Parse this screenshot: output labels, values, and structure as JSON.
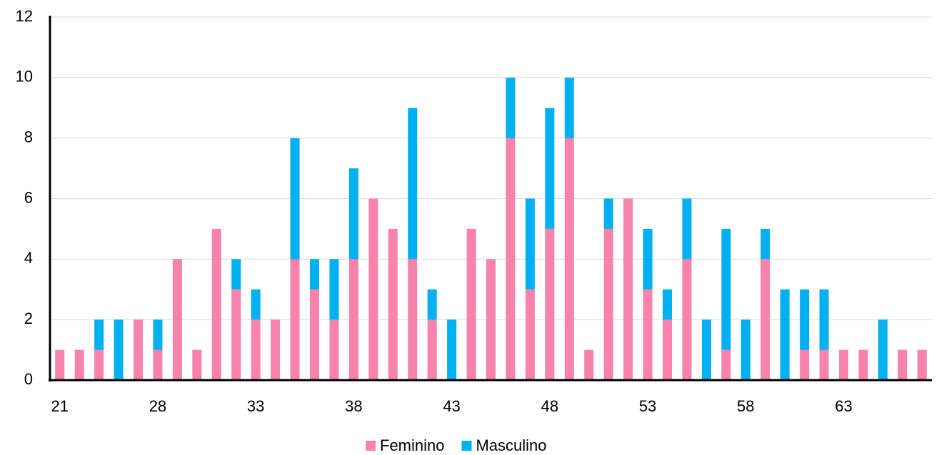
{
  "chart_data": {
    "type": "stacked_bar",
    "categories": [
      21,
      null,
      null,
      null,
      null,
      28,
      null,
      null,
      null,
      null,
      33,
      null,
      null,
      null,
      null,
      38,
      null,
      null,
      null,
      null,
      43,
      null,
      null,
      null,
      null,
      48,
      null,
      null,
      null,
      null,
      53,
      null,
      null,
      null,
      null,
      58,
      null,
      null,
      null,
      null,
      63,
      null,
      null,
      null,
      null
    ],
    "series": [
      {
        "name": "Feminino",
        "color": "#f783ac",
        "values": [
          1,
          1,
          1,
          0,
          2,
          1,
          4,
          1,
          5,
          3,
          2,
          2,
          4,
          3,
          2,
          4,
          6,
          5,
          4,
          2,
          0,
          5,
          4,
          8,
          3,
          5,
          8,
          1,
          5,
          6,
          3,
          2,
          4,
          0,
          1,
          0,
          4,
          0,
          1,
          1,
          1,
          1,
          0,
          1,
          1
        ]
      },
      {
        "name": "Masculino",
        "color": "#00b0f0",
        "values": [
          0,
          0,
          1,
          2,
          0,
          1,
          0,
          0,
          0,
          1,
          1,
          0,
          4,
          1,
          2,
          3,
          0,
          0,
          5,
          1,
          2,
          0,
          0,
          2,
          3,
          4,
          2,
          0,
          1,
          0,
          2,
          1,
          2,
          2,
          4,
          2,
          1,
          3,
          2,
          2,
          0,
          0,
          2,
          0,
          0
        ]
      }
    ],
    "ylim": [
      0,
      12
    ],
    "yticks": [
      0,
      2,
      4,
      6,
      8,
      10,
      12
    ],
    "grid": true,
    "legend": "bottom"
  }
}
